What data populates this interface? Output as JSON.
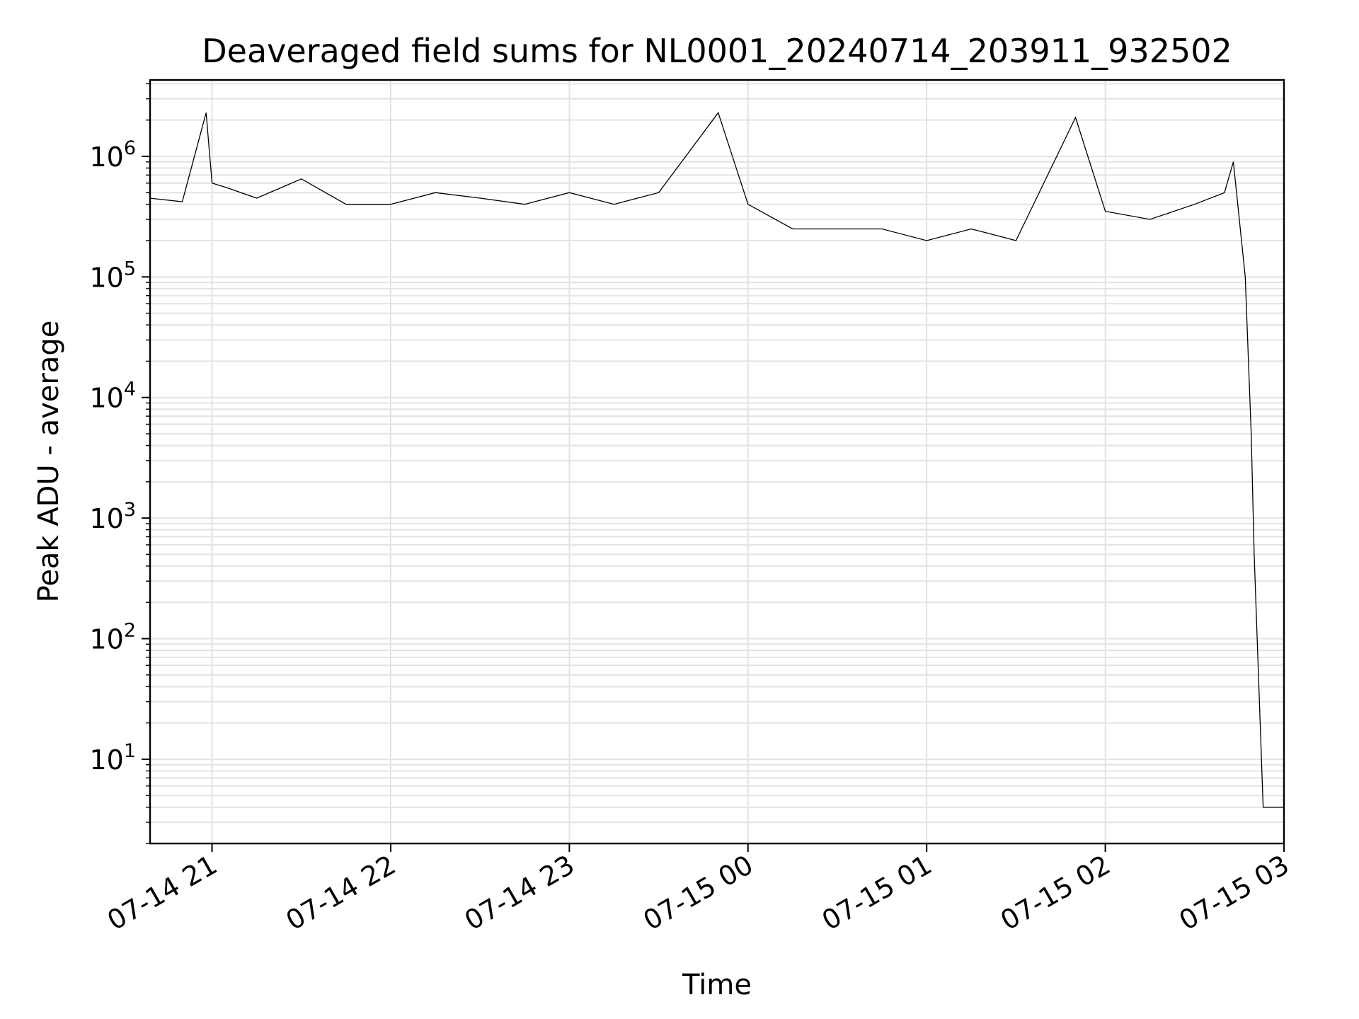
{
  "chart_data": {
    "type": "line",
    "title": "Deaveraged field sums for NL0001_20240714_203911_932502",
    "xlabel": "Time",
    "ylabel": "Peak ADU - average",
    "x_axis": "time",
    "xlim": [
      "2024-07-14 20:39:11",
      "2024-07-15 03:00:00"
    ],
    "x_tick_values": [
      "2024-07-14 21:00",
      "2024-07-14 22:00",
      "2024-07-14 23:00",
      "2024-07-15 00:00",
      "2024-07-15 01:00",
      "2024-07-15 02:00",
      "2024-07-15 03:00"
    ],
    "x_tick_labels": [
      "07-14 21",
      "07-14 22",
      "07-14 23",
      "07-15 00",
      "07-15 01",
      "07-15 02",
      "07-15 03"
    ],
    "yscale": "log",
    "ylim": [
      2,
      4300000
    ],
    "y_tick_values": [
      10,
      100,
      1000,
      10000,
      100000,
      1000000
    ],
    "y_tick_labels": [
      {
        "base": "10",
        "exp": "1"
      },
      {
        "base": "10",
        "exp": "2"
      },
      {
        "base": "10",
        "exp": "3"
      },
      {
        "base": "10",
        "exp": "4"
      },
      {
        "base": "10",
        "exp": "5"
      },
      {
        "base": "10",
        "exp": "6"
      }
    ],
    "grid": true,
    "series_color": "#000000",
    "series": [
      {
        "x": [
          "2024-07-14 20:39",
          "2024-07-14 20:50",
          "2024-07-14 20:58",
          "2024-07-14 21:00",
          "2024-07-14 21:05",
          "2024-07-14 21:15",
          "2024-07-14 21:30",
          "2024-07-14 21:45",
          "2024-07-14 22:00",
          "2024-07-14 22:15",
          "2024-07-14 22:30",
          "2024-07-14 22:45",
          "2024-07-14 23:00",
          "2024-07-14 23:15",
          "2024-07-14 23:30",
          "2024-07-14 23:50",
          "2024-07-15 00:00",
          "2024-07-15 00:15",
          "2024-07-15 00:30",
          "2024-07-15 00:45",
          "2024-07-15 01:00",
          "2024-07-15 01:15",
          "2024-07-15 01:30",
          "2024-07-15 01:50",
          "2024-07-15 02:00",
          "2024-07-15 02:15",
          "2024-07-15 02:30",
          "2024-07-15 02:40",
          "2024-07-15 02:43",
          "2024-07-15 02:47",
          "2024-07-15 02:49",
          "2024-07-15 02:50",
          "2024-07-15 02:53",
          "2024-07-15 03:00"
        ],
        "values": [
          450000,
          420000,
          2300000,
          600000,
          550000,
          450000,
          650000,
          400000,
          400000,
          500000,
          450000,
          400000,
          500000,
          400000,
          500000,
          2300000,
          400000,
          250000,
          250000,
          250000,
          200000,
          250000,
          200000,
          2100000,
          350000,
          300000,
          400000,
          500000,
          900000,
          100000,
          5000,
          500,
          4,
          4
        ]
      }
    ]
  }
}
